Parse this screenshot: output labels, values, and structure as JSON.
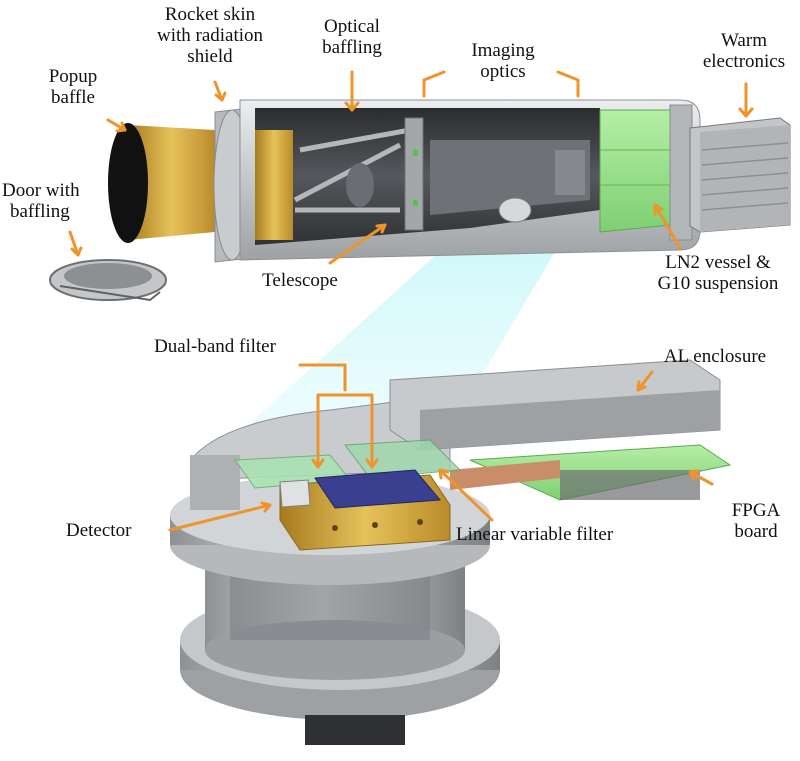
{
  "labels": {
    "popup_baffle": [
      "Popup",
      "baffle"
    ],
    "rocket_skin": [
      "Rocket skin",
      "with radiation",
      "shield"
    ],
    "optical_baffling": [
      "Optical",
      "baffling"
    ],
    "imaging_optics": [
      "Imaging",
      "optics"
    ],
    "warm_electronics": [
      "Warm",
      "electronics"
    ],
    "door_with_baffling": [
      "Door with",
      "baffling"
    ],
    "telescope": "Telescope",
    "ln2_vessel": [
      "LN2 vessel &",
      "G10 suspension"
    ],
    "dual_band_filter": "Dual-band filter",
    "al_enclosure": "AL enclosure",
    "detector": "Detector",
    "linear_variable_filter": "Linear variable filter",
    "fpga_board": [
      "FPGA",
      "board"
    ]
  },
  "colors": {
    "arrow": "#f0932b",
    "gold": "#d4a43c",
    "green": "#9be08e",
    "pcb_green": "#8fd36e",
    "metal": "#a9acaf",
    "dark": "#3b3d40",
    "detector_blue": "#3b3f8f",
    "light_cone": "#b9f2f7"
  }
}
